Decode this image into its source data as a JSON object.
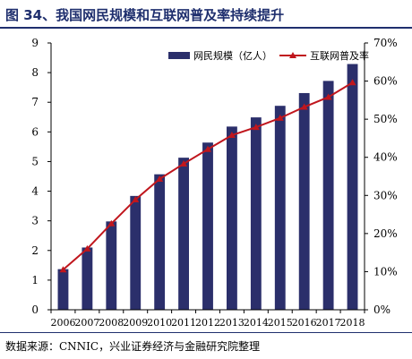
{
  "header": {
    "title": "图 34、我国网民规模和互联网普及率持续提升"
  },
  "footer": {
    "source": "数据来源：CNNIC，兴业证券经济与金融研究院整理"
  },
  "chart_data": {
    "type": "bar",
    "categories": [
      "2006",
      "2007",
      "2008",
      "2009",
      "2010",
      "2011",
      "2012",
      "2013",
      "2014",
      "2015",
      "2016",
      "2017",
      "2018"
    ],
    "series": [
      {
        "name": "网民规模（亿人）",
        "type": "bar",
        "axis": "left",
        "values": [
          1.37,
          2.1,
          2.98,
          3.84,
          4.57,
          5.13,
          5.64,
          6.18,
          6.49,
          6.88,
          7.31,
          7.72,
          8.29
        ]
      },
      {
        "name": "互联网普及率",
        "type": "line",
        "axis": "right",
        "values": [
          10.5,
          16.0,
          22.6,
          28.9,
          34.3,
          38.3,
          42.1,
          45.8,
          47.9,
          50.3,
          53.2,
          55.8,
          59.6
        ]
      }
    ],
    "y_left": {
      "ylim": [
        0,
        9
      ],
      "ticks": [
        "0",
        "1",
        "2",
        "3",
        "4",
        "5",
        "6",
        "7",
        "8",
        "9"
      ]
    },
    "y_right": {
      "ylim": [
        0,
        70
      ],
      "ticks": [
        "0%",
        "10%",
        "20%",
        "30%",
        "40%",
        "50%",
        "60%",
        "70%"
      ]
    },
    "legend_position": "top-right",
    "grid": false,
    "colors": {
      "bar": "#2b2f6b",
      "line": "#c0161d",
      "title": "#1f2f6e"
    }
  }
}
